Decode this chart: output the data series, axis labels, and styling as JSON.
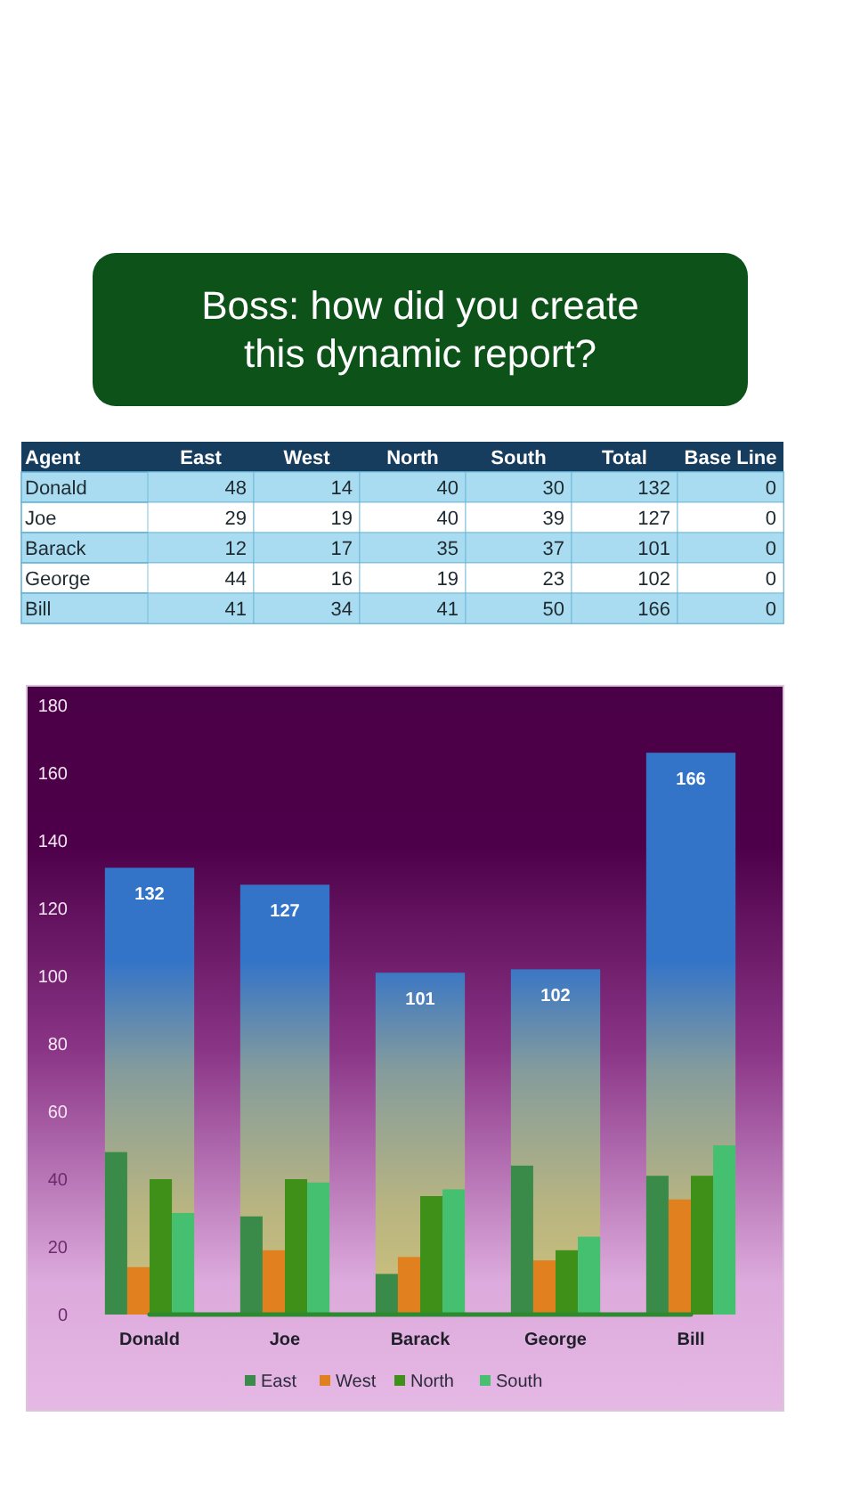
{
  "chart_data": [
    {
      "type": "heatmap",
      "title": "Boss: how did you create this dynamic report?",
      "ylabel": "Agent",
      "categories": [
        "East",
        "West",
        "North",
        "South",
        "Total",
        "Base Line"
      ],
      "y_categories": [
        "Donald",
        "Joe",
        "Barack",
        "George",
        "Bill"
      ],
      "cells": [
        [
          48,
          14,
          40,
          30,
          132,
          0
        ],
        [
          29,
          19,
          40,
          39,
          127,
          0
        ],
        [
          12,
          17,
          35,
          37,
          101,
          0
        ],
        [
          44,
          16,
          19,
          23,
          102,
          0
        ],
        [
          41,
          34,
          41,
          50,
          166,
          0
        ]
      ],
      "data_labels": true
    },
    {
      "type": "bar",
      "categories": [
        "Donald",
        "Joe",
        "Barack",
        "George",
        "Bill"
      ],
      "series": [
        {
          "name": "East",
          "color": "#3a8a4a",
          "values": [
            48,
            29,
            12,
            44,
            41
          ]
        },
        {
          "name": "West",
          "color": "#e0801e",
          "values": [
            14,
            19,
            17,
            16,
            34
          ]
        },
        {
          "name": "North",
          "color": "#3e9018",
          "values": [
            40,
            40,
            35,
            19,
            41
          ]
        },
        {
          "name": "South",
          "color": "#44c070",
          "values": [
            30,
            39,
            37,
            23,
            50
          ]
        },
        {
          "type": "bar",
          "color": "#3474c8",
          "values": [
            132,
            127,
            101,
            102,
            166
          ],
          "value_labels": [
            "132",
            "127",
            "101",
            "102",
            "166"
          ]
        },
        {
          "type": "line",
          "color": "#2e8a2e",
          "values": [
            0,
            0,
            0,
            0,
            0
          ]
        }
      ],
      "ylim": [
        0,
        180
      ],
      "yticks": [
        0,
        20,
        40,
        60,
        80,
        100,
        120,
        140,
        160,
        180
      ],
      "legend": "bottom"
    }
  ]
}
